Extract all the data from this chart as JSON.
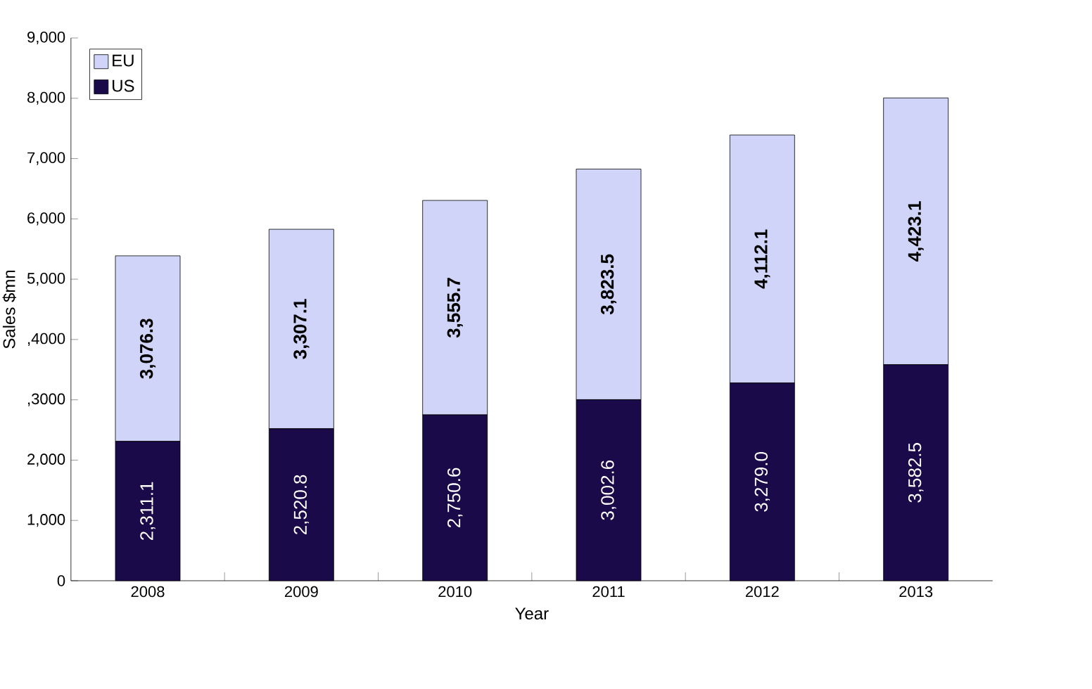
{
  "chart_data": {
    "type": "bar",
    "stacked": true,
    "xlabel": "Year",
    "ylabel": "Sales $mn",
    "categories": [
      "2008",
      "2009",
      "2010",
      "2011",
      "2012",
      "2013"
    ],
    "series": [
      {
        "name": "US",
        "color": "#1a0a4a",
        "values": [
          2311.1,
          2520.8,
          2750.6,
          3002.6,
          3279.0,
          3582.5
        ],
        "value_labels": [
          "2,311.1",
          "2,520.8",
          "2,750.6",
          "3,002.6",
          "3,279.0",
          "3,582.5"
        ]
      },
      {
        "name": "EU",
        "color": "#d0d4f8",
        "values": [
          3076.3,
          3307.1,
          3555.7,
          3823.5,
          4112.1,
          4423.1
        ],
        "value_labels": [
          "3,076.3",
          "3,307.1",
          "3,555.7",
          "3,823.5",
          "4,112.1",
          "4,423.1"
        ]
      }
    ],
    "ylim": [
      0,
      9000
    ],
    "yticks": [
      0,
      {
        "value": 1000,
        "label": "1,000"
      },
      {
        "value": 2000,
        "label": "2,000"
      },
      {
        "value": 3000,
        "label": ",3000"
      },
      {
        "value": 4000,
        "label": ",4000"
      },
      {
        "value": 5000,
        "label": "5,000"
      },
      {
        "value": 6000,
        "label": "6,000"
      },
      {
        "value": 7000,
        "label": "7,000"
      },
      {
        "value": 8000,
        "label": "8,000"
      },
      {
        "value": 9000,
        "label": "9,000"
      }
    ],
    "legend": "top left",
    "grid": false
  }
}
